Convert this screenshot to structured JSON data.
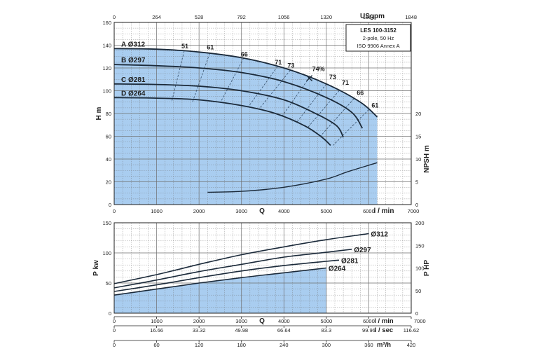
{
  "colors": {
    "fill": "#a9cdf0",
    "grid": "#6e6e6e",
    "curve": "#1b2a3a",
    "dashed": "#37506b",
    "text": "#1f1f1f"
  },
  "info_box": {
    "model": "LES 100-3152",
    "poles": "2-pole, 50 Hz",
    "standard": "ISO 9906 Annex A"
  },
  "chart_data": [
    {
      "type": "line",
      "panel": "head",
      "ylabel": "H m",
      "ylabel_right": "NPSH m",
      "x_unit_label": "l / min",
      "x_label": "Q",
      "top_unit_label": "USgpm",
      "xlim": [
        0,
        7000
      ],
      "ylim": [
        0,
        160
      ],
      "npsh_lim": [
        0,
        20
      ],
      "x_ticks": [
        0,
        1000,
        2000,
        3000,
        4000,
        5000,
        6000,
        7000
      ],
      "y_ticks": [
        0,
        20,
        40,
        60,
        80,
        100,
        120,
        140,
        160
      ],
      "npsh_ticks": [
        0,
        5,
        10,
        15,
        20
      ],
      "top_ticks": [
        0,
        264,
        528,
        792,
        1056,
        1320,
        1584,
        1848
      ],
      "grid": true,
      "series": [
        {
          "name": "A Ø312",
          "x": [
            0,
            1000,
            2000,
            3000,
            4000,
            5000,
            5800,
            6200
          ],
          "y": [
            137,
            136.5,
            134,
            129,
            120,
            106,
            90,
            77
          ]
        },
        {
          "name": "B Ø297",
          "x": [
            0,
            1000,
            2000,
            3000,
            4000,
            5000,
            5600,
            5850
          ],
          "y": [
            123,
            122,
            120,
            116,
            108,
            94,
            81,
            67
          ]
        },
        {
          "name": "C Ø281",
          "x": [
            0,
            1000,
            2000,
            3000,
            4000,
            4800,
            5250,
            5400
          ],
          "y": [
            106,
            105.5,
            104,
            100,
            92,
            79,
            69,
            59
          ]
        },
        {
          "name": "D Ø264",
          "x": [
            0,
            1000,
            2000,
            3000,
            3800,
            4500,
            4900,
            5100
          ],
          "y": [
            94,
            93.5,
            92,
            87,
            80,
            69,
            59,
            52
          ]
        },
        {
          "name": "NPSH",
          "x": [
            2200,
            3000,
            4000,
            5000,
            5500,
            6200
          ],
          "y": [
            2.7,
            2.9,
            3.8,
            5.6,
            7.2,
            9.2
          ]
        }
      ],
      "efficiency_labels": [
        "51",
        "61",
        "66",
        "71",
        "73",
        "74%",
        "73",
        "71",
        "66",
        "61"
      ],
      "efficiency_points": [
        {
          "label": "51",
          "x": 1650,
          "y": 136
        },
        {
          "label": "61",
          "x": 2250,
          "y": 135
        },
        {
          "label": "66",
          "x": 3050,
          "y": 129
        },
        {
          "label": "71",
          "x": 3850,
          "y": 122
        },
        {
          "label": "73",
          "x": 4150,
          "y": 119
        },
        {
          "label": "74%",
          "x": 4600,
          "y": 116
        },
        {
          "label": "73",
          "x": 5000,
          "y": 109
        },
        {
          "label": "71",
          "x": 5300,
          "y": 104
        },
        {
          "label": "66",
          "x": 5650,
          "y": 95
        },
        {
          "label": "61",
          "x": 6000,
          "y": 84
        }
      ],
      "bep": {
        "x": 4600,
        "y": 111
      }
    },
    {
      "type": "line",
      "panel": "power",
      "ylabel": "P kw",
      "ylabel_right": "P HP",
      "xlim": [
        0,
        7000
      ],
      "ylim": [
        0,
        150
      ],
      "hp_lim": [
        0,
        200
      ],
      "x_ticks": [
        0,
        1000,
        2000,
        3000,
        4000,
        5000,
        6000,
        7000
      ],
      "y_ticks": [
        0,
        50,
        100,
        150
      ],
      "hp_ticks": [
        0,
        50,
        100,
        150,
        200
      ],
      "grid": true,
      "series": [
        {
          "name": "Ø312",
          "x": [
            0,
            1000,
            2000,
            3000,
            4000,
            5000,
            6000
          ],
          "y": [
            49,
            64,
            81,
            97,
            110,
            122,
            132
          ]
        },
        {
          "name": "Ø297",
          "x": [
            0,
            1000,
            2000,
            3000,
            4000,
            5000,
            5600
          ],
          "y": [
            42,
            55,
            69,
            81,
            93,
            101,
            106
          ]
        },
        {
          "name": "Ø281",
          "x": [
            0,
            1000,
            2000,
            3000,
            4000,
            5000,
            5300
          ],
          "y": [
            36,
            47,
            59,
            70,
            79,
            86,
            88
          ]
        },
        {
          "name": "Ø264",
          "x": [
            0,
            1000,
            2000,
            3000,
            4000,
            5000
          ],
          "y": [
            30,
            40,
            50,
            59,
            67,
            75
          ]
        }
      ]
    }
  ],
  "bottom_axes": [
    {
      "unit": "l / min",
      "label": "Q",
      "ticks": [
        "0",
        "1000",
        "2000",
        "3000",
        "4000",
        "5000",
        "6000",
        "7000"
      ]
    },
    {
      "unit": "l / sec",
      "ticks": [
        "0",
        "16.66",
        "33.32",
        "49.98",
        "66.64",
        "83.3",
        "99.96",
        "116.62"
      ]
    },
    {
      "unit": "m³/h",
      "ticks": [
        "0",
        "60",
        "120",
        "180",
        "240",
        "300",
        "360",
        "420"
      ]
    }
  ]
}
